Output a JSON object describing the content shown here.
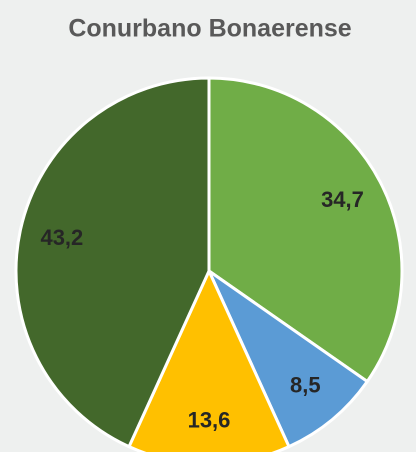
{
  "chart_data": {
    "type": "pie",
    "title": "Conurbano Bonaerense",
    "values": [
      34.7,
      8.5,
      13.6,
      43.2
    ],
    "value_labels": [
      "34,7",
      "8,5",
      "13,6",
      "43,2"
    ],
    "colors": [
      "#70ad47",
      "#5b9bd5",
      "#ffc000",
      "#43682b"
    ]
  }
}
